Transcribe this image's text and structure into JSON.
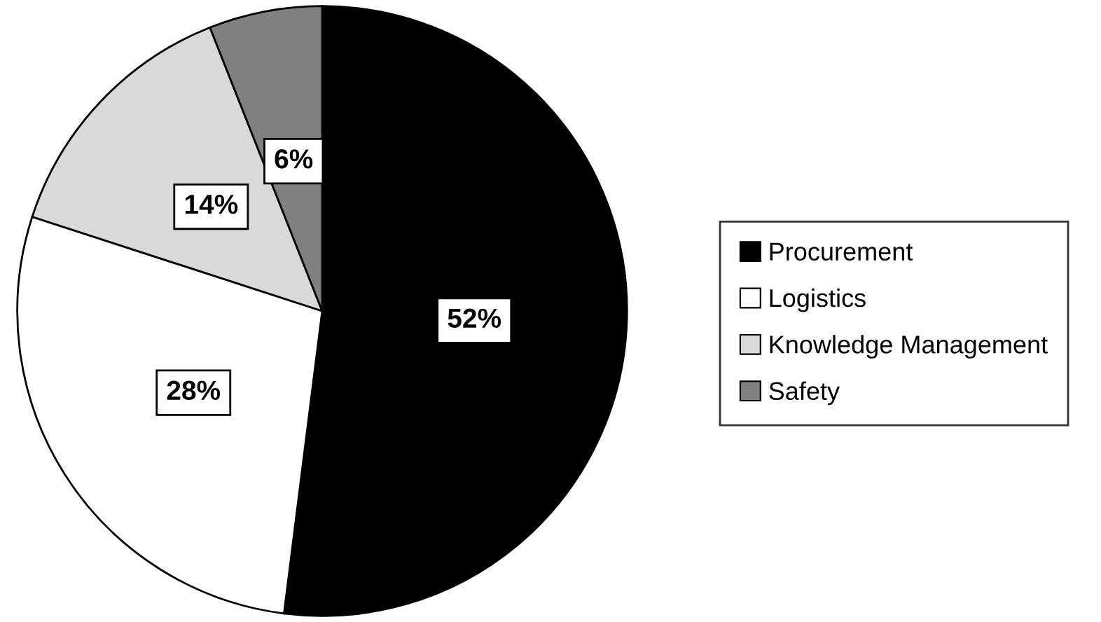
{
  "chart_data": {
    "type": "pie",
    "categories": [
      "Procurement",
      "Logistics",
      "Knowledge Management",
      "Safety"
    ],
    "values": [
      52,
      28,
      14,
      6
    ],
    "colors": [
      "#000000",
      "#ffffff",
      "#d9d9d9",
      "#808080"
    ],
    "value_labels": [
      "52%",
      "28%",
      "14%",
      "6%"
    ],
    "legend": "right"
  }
}
